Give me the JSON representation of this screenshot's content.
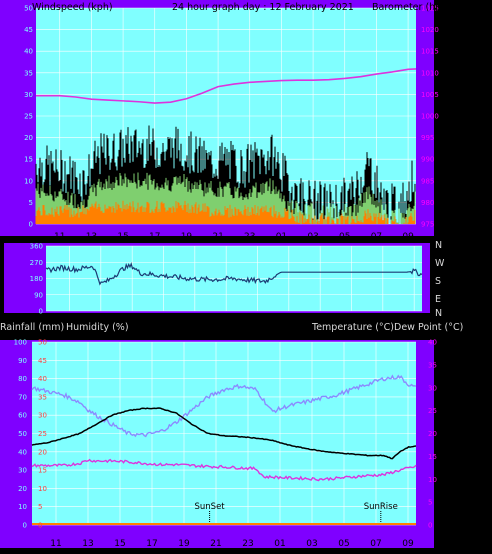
{
  "colors": {
    "frame": "#7f00ff",
    "plot_bg": "#80ffff",
    "grid": "#ffffff",
    "gust": "#000000",
    "avg_wind": "#7fcf6f",
    "wind_low": "#ff8000",
    "barometer": "#dd33dd",
    "direction": "#1b3a73",
    "temperature": "#000000",
    "dew_point": "#dd33dd",
    "humidity": "#8b8bff",
    "rain": "#ff8000",
    "left_axis_text": "#7fffff",
    "right_axis_text": "#ff00ff",
    "text": "#d8d8d8"
  },
  "header": {
    "left": "Windspeed (kph)",
    "center": "24 hour graph day : 12 February 2021",
    "right": "Barometer (hpa)"
  },
  "lower_header": {
    "rain": "Rainfall (mm)",
    "humidity": "Humidity (%)",
    "temperature": "Temperature (°C)",
    "dew_point": "Dew Point (°C)"
  },
  "direction_letters": [
    "N",
    "W",
    "S",
    "E",
    "N"
  ],
  "annotations": {
    "sunset": "SunSet",
    "sunrise": "SunRise"
  },
  "x_ticks": [
    "11",
    "13",
    "15",
    "17",
    "19",
    "21",
    "23",
    "01",
    "03",
    "05",
    "07",
    "09"
  ],
  "chart_data": [
    {
      "type": "line",
      "name": "wind_and_barometer",
      "x_hours": [
        9.5,
        33.5
      ],
      "wind_axis": {
        "ticks": [
          "0",
          "5",
          "10",
          "15",
          "20",
          "25",
          "30",
          "35",
          "40",
          "45",
          "50"
        ],
        "ylim": [
          0,
          50
        ]
      },
      "baro_axis": {
        "ticks": [
          "975",
          "980",
          "985",
          "990",
          "995",
          "1000",
          "1005",
          "1010",
          "1015",
          "1020",
          "1025"
        ],
        "ylim": [
          975,
          1025
        ]
      },
      "barometer": {
        "x": [
          9.5,
          11,
          12,
          13,
          14,
          15,
          16,
          17,
          18,
          19,
          20,
          21,
          22,
          23,
          24,
          25,
          26,
          27,
          28,
          29,
          30,
          31,
          32,
          33,
          33.5
        ],
        "y": [
          1004.7,
          1004.7,
          1004.4,
          1003.9,
          1003.7,
          1003.5,
          1003.3,
          1003.0,
          1003.2,
          1004.0,
          1005.3,
          1006.8,
          1007.4,
          1007.8,
          1008.0,
          1008.2,
          1008.3,
          1008.3,
          1008.4,
          1008.7,
          1009.1,
          1009.7,
          1010.2,
          1010.8,
          1010.9
        ]
      },
      "gust": {
        "x": [
          9.5,
          10.5,
          11.5,
          12.5,
          13.5,
          14.5,
          15.5,
          16.5,
          17.5,
          18.5,
          19.5,
          20.5,
          21.5,
          22.5,
          23.5,
          24.5,
          25.5,
          26.5,
          27.5,
          28.5,
          29.5,
          30.5,
          31.5,
          32.5,
          33.5
        ],
        "y": [
          14,
          13,
          12,
          10,
          16,
          17,
          18,
          18,
          17,
          18,
          16,
          14,
          15,
          13,
          15,
          16,
          9,
          6,
          5,
          5,
          7,
          14,
          5,
          4,
          12
        ]
      },
      "avg": {
        "x": [
          9.5,
          10.5,
          11.5,
          12.5,
          13.5,
          14.5,
          15.5,
          16.5,
          17.5,
          18.5,
          19.5,
          20.5,
          21.5,
          22.5,
          23.5,
          24.5,
          25.5,
          26.5,
          27.5,
          28.5,
          29.5,
          30.5,
          31.5,
          32.5,
          33.5
        ],
        "y": [
          8,
          7,
          6,
          5,
          9,
          10,
          10,
          10,
          9,
          10,
          9,
          8,
          8,
          7,
          8,
          9,
          4,
          3,
          3,
          3,
          3,
          7,
          3,
          2,
          6
        ]
      },
      "low": {
        "x": [
          9.5,
          10.5,
          11.5,
          12.5,
          13.5,
          14.5,
          15.5,
          16.5,
          17.5,
          18.5,
          19.5,
          20.5,
          21.5,
          22.5,
          23.5,
          24.5,
          25.5,
          26.5,
          27.5,
          28.5,
          29.5,
          30.5,
          31.5,
          32.5,
          33.5
        ],
        "y": [
          3,
          3,
          3,
          3,
          4,
          4,
          4,
          4,
          4,
          4,
          4,
          3,
          3,
          3,
          3,
          3,
          2,
          1,
          1,
          1,
          1,
          2,
          1,
          0,
          2
        ]
      }
    },
    {
      "type": "line",
      "name": "wind_direction",
      "x_hours": [
        9.5,
        33.5
      ],
      "ylim": [
        0,
        360
      ],
      "y_ticks": [
        "0",
        "90",
        "180",
        "270",
        "360"
      ],
      "x": [
        9.5,
        10.5,
        11.5,
        12.5,
        13,
        13.5,
        14.5,
        15,
        15.5,
        16.5,
        17.5,
        18.5,
        19.5,
        20.5,
        21.5,
        22.5,
        23.5,
        24,
        24.5,
        25.5,
        26.5,
        27.5,
        28.5,
        29.5,
        30.5,
        31.5,
        32.5,
        33,
        33.5
      ],
      "y": [
        225,
        240,
        230,
        250,
        150,
        170,
        240,
        250,
        210,
        200,
        190,
        180,
        175,
        175,
        180,
        170,
        165,
        190,
        215,
        215,
        215,
        215,
        215,
        215,
        215,
        215,
        215,
        220,
        200
      ]
    },
    {
      "type": "line",
      "name": "temp_humidity_rain",
      "x_hours": [
        9.5,
        33.5
      ],
      "rain_axis": {
        "ticks": [
          "0",
          "5",
          "10",
          "15",
          "20",
          "25",
          "30",
          "35",
          "40",
          "45",
          "50"
        ],
        "ylim": [
          0,
          50
        ]
      },
      "humidity_axis": {
        "ticks": [
          "0",
          "10",
          "20",
          "30",
          "40",
          "50",
          "60",
          "70",
          "80",
          "90",
          "100"
        ],
        "ylim": [
          0,
          100
        ]
      },
      "temp_axis": {
        "ticks": [
          "0",
          "5",
          "10",
          "15",
          "20",
          "25",
          "30",
          "35",
          "40"
        ],
        "ylim": [
          0,
          40
        ]
      },
      "temperature": {
        "x": [
          9.5,
          10.5,
          11.5,
          12.5,
          13.5,
          14.5,
          15.5,
          16.5,
          17.5,
          18.5,
          19.5,
          20.5,
          21.5,
          22.5,
          23.5,
          24.5,
          25.5,
          26.5,
          27.5,
          28.5,
          29.5,
          30.5,
          31.5,
          32,
          32.5,
          33,
          33.5
        ],
        "y": [
          17.5,
          18,
          19,
          20,
          22,
          24,
          25,
          25.5,
          25.5,
          24.5,
          22,
          20,
          19.5,
          19.3,
          19,
          18.5,
          17.5,
          16.8,
          16.2,
          15.8,
          15.5,
          15.2,
          15.2,
          14.5,
          16,
          17,
          17.2
        ]
      },
      "dew_point": {
        "x": [
          9.5,
          10.5,
          11.5,
          12.5,
          13,
          13.5,
          14.5,
          15.5,
          16.5,
          17.5,
          18.5,
          19.5,
          20.5,
          21.5,
          22.5,
          23.5,
          24,
          24.5,
          25.5,
          26.5,
          27.5,
          28.5,
          29.5,
          30.5,
          31.5,
          32.5,
          33.5
        ],
        "y": [
          13,
          13,
          13,
          13.5,
          14.2,
          14,
          14,
          13.8,
          13.5,
          13.2,
          13.2,
          13,
          12.8,
          12.7,
          12.5,
          12.3,
          10.5,
          10.5,
          10.3,
          10.2,
          10,
          10.2,
          10.5,
          10.8,
          11,
          12,
          12.8
        ]
      },
      "humidity": {
        "x": [
          9.5,
          10.5,
          11.5,
          12.5,
          13,
          13.5,
          14.5,
          15.5,
          16.5,
          17.5,
          18.5,
          19.5,
          20.5,
          21.5,
          22.5,
          23.5,
          24,
          24.5,
          25.5,
          26.5,
          27.5,
          28.5,
          29.5,
          30.5,
          31.5,
          32.5,
          33,
          33.5
        ],
        "y": [
          75,
          73,
          71,
          67,
          63,
          60,
          55,
          50,
          49,
          51,
          56,
          63,
          70,
          74,
          76,
          74,
          68,
          62,
          65,
          67,
          69,
          71,
          74,
          77,
          80,
          81,
          77,
          75
        ]
      },
      "rain": {
        "x": [
          9.5,
          33.5
        ],
        "y": [
          0,
          0
        ]
      },
      "sunset_hour": 20.6,
      "sunrise_hour": 31.3
    }
  ]
}
